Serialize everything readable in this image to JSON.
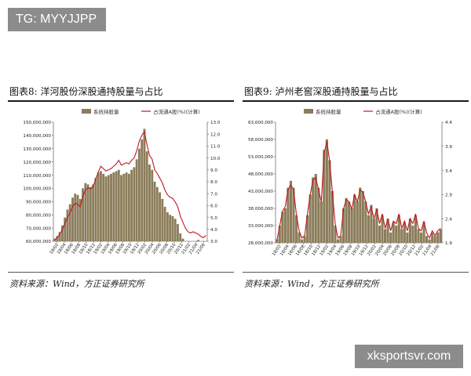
{
  "header_badge": "TG: MYYJJPP",
  "watermark": "xksportsvr.com",
  "colors": {
    "bar": "#8b7d5b",
    "line": "#c0171f",
    "rule": "#1a1a1a"
  },
  "figures": [
    {
      "title": "图表8:   洋河股份深股通持股量与占比",
      "source": "资料来源：Wind，方正证券研究所"
    },
    {
      "title": "图表9:   泸州老窖深股通持股量与占比",
      "source": "资料来源：Wind，方正证券研究所"
    }
  ],
  "chart_data": [
    {
      "type": "bar",
      "legend": [
        "系统持股量",
        "占流通A股(%)(计算)"
      ],
      "legend_position": "top-center",
      "grid": false,
      "y_left_ticks": [
        "150,000,000",
        "140,000,000",
        "130,000,000",
        "120,000,000",
        "110,000,000",
        "100,000,000",
        "90,000,000",
        "80,000,000",
        "70,000,000",
        "60,000,000"
      ],
      "y_right_ticks": [
        "13.0",
        "12.0",
        "11.0",
        "10.0",
        "9.0",
        "8.0",
        "7.0",
        "6.0",
        "5.0",
        "4.0",
        "3.0"
      ],
      "x_ticks": [
        "18/02",
        "18/04",
        "18/06",
        "18/08",
        "18/10",
        "18/12",
        "19/02",
        "19/04",
        "19/06",
        "19/08",
        "19/10",
        "19/12",
        "20/02",
        "20/04",
        "20/06",
        "20/08",
        "20/10",
        "20/12",
        "21/02",
        "21/04",
        "21/06"
      ],
      "ylim_left": [
        60000000,
        150000000
      ],
      "ylim_right": [
        3.0,
        13.0
      ],
      "series": [
        {
          "name": "系统持股量",
          "axis": "left",
          "kind": "bar",
          "values": [
            62000000,
            64000000,
            67000000,
            72000000,
            78000000,
            84000000,
            88000000,
            93000000,
            96000000,
            95000000,
            92000000,
            100000000,
            104000000,
            103000000,
            101000000,
            103000000,
            108000000,
            112000000,
            113000000,
            111000000,
            109000000,
            110000000,
            111000000,
            112000000,
            113000000,
            114000000,
            110000000,
            111000000,
            112000000,
            111000000,
            114000000,
            116000000,
            122000000,
            130000000,
            137000000,
            145000000,
            128000000,
            118000000,
            114000000,
            105000000,
            101000000,
            97000000,
            92000000,
            86000000,
            82000000,
            80000000,
            79000000,
            77000000,
            73000000,
            66000000,
            62000000,
            58000000,
            57000000,
            58000000,
            59000000,
            60000000,
            61000000,
            59000000,
            58000000,
            60000000
          ]
        },
        {
          "name": "占流通A股(%)(计算)",
          "axis": "right",
          "kind": "line",
          "values": [
            3.1,
            3.3,
            3.6,
            4.0,
            4.5,
            5.0,
            5.4,
            5.9,
            6.2,
            6.1,
            5.9,
            6.8,
            7.3,
            7.5,
            7.4,
            7.6,
            8.2,
            8.8,
            9.3,
            9.1,
            8.9,
            9.0,
            9.1,
            9.3,
            9.5,
            9.8,
            9.4,
            9.5,
            9.6,
            9.5,
            9.8,
            10.0,
            10.6,
            11.4,
            11.9,
            12.2,
            11.1,
            10.2,
            9.9,
            9.0,
            8.7,
            8.3,
            7.9,
            7.3,
            6.9,
            6.7,
            6.6,
            6.3,
            5.9,
            5.1,
            4.6,
            4.1,
            3.8,
            3.7,
            3.8,
            3.7,
            3.6,
            3.4,
            3.3,
            3.5
          ]
        }
      ]
    },
    {
      "type": "bar",
      "legend": [
        "系统持股量",
        "占流通A股(%)(计算)"
      ],
      "legend_position": "top-center",
      "grid": false,
      "y_left_ticks": [
        "63,000,000",
        "58,000,000",
        "53,000,000",
        "48,000,000",
        "43,000,000",
        "38,000,000",
        "33,000,000",
        "28,000,000"
      ],
      "y_right_ticks": [
        "4.4",
        "3.9",
        "3.4",
        "2.9",
        "2.4",
        "1.9"
      ],
      "x_ticks": [
        "18/02",
        "18/04",
        "18/06",
        "18/08",
        "18/10",
        "18/12",
        "19/02",
        "19/04",
        "19/06",
        "19/08",
        "19/10",
        "19/12",
        "20/02",
        "20/04",
        "20/06",
        "20/08",
        "20/10",
        "20/12",
        "21/02",
        "21/04",
        "21/06"
      ],
      "ylim_left": [
        28000000,
        63000000
      ],
      "ylim_right": [
        1.9,
        4.4
      ],
      "series": [
        {
          "name": "系统持股量",
          "axis": "left",
          "kind": "bar",
          "values": [
            29000000,
            33000000,
            37000000,
            38000000,
            44000000,
            46000000,
            44000000,
            36000000,
            31000000,
            29000000,
            30000000,
            36000000,
            42000000,
            47000000,
            48000000,
            44000000,
            40000000,
            55000000,
            58000000,
            52000000,
            43000000,
            33000000,
            29000000,
            30000000,
            38000000,
            41000000,
            40000000,
            38000000,
            42000000,
            40000000,
            44000000,
            43000000,
            40000000,
            36000000,
            39000000,
            35000000,
            38000000,
            33000000,
            36000000,
            32000000,
            35000000,
            31000000,
            34000000,
            33000000,
            36000000,
            32000000,
            34000000,
            31000000,
            35000000,
            33000000,
            36000000,
            32000000,
            31000000,
            34000000,
            30000000,
            29000000,
            31000000,
            30000000,
            31000000,
            32000000
          ]
        },
        {
          "name": "占流通A股(%)(计算)",
          "axis": "right",
          "kind": "line",
          "values": [
            1.95,
            2.25,
            2.55,
            2.65,
            3.0,
            3.1,
            3.0,
            2.5,
            2.15,
            2.0,
            2.05,
            2.5,
            2.9,
            3.2,
            3.25,
            3.0,
            2.75,
            3.75,
            4.0,
            3.6,
            2.95,
            2.3,
            2.0,
            2.05,
            2.6,
            2.8,
            2.75,
            2.6,
            2.9,
            2.75,
            3.0,
            2.95,
            2.75,
            2.5,
            2.65,
            2.4,
            2.6,
            2.3,
            2.5,
            2.2,
            2.4,
            2.15,
            2.35,
            2.3,
            2.5,
            2.2,
            2.35,
            2.15,
            2.4,
            2.3,
            2.5,
            2.2,
            2.15,
            2.35,
            2.1,
            2.0,
            2.15,
            2.05,
            2.15,
            2.2
          ]
        }
      ]
    }
  ]
}
